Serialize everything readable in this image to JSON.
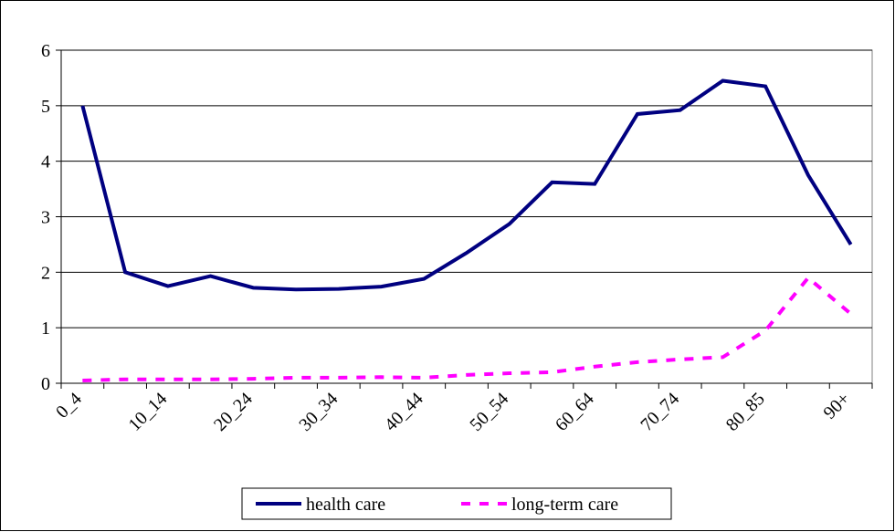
{
  "chart_data": {
    "type": "line",
    "categories": [
      "0_4",
      null,
      "10_14",
      null,
      "20_24",
      null,
      "30_34",
      null,
      "40_44",
      null,
      "50_54",
      null,
      "60_64",
      null,
      "70_74",
      null,
      "80_85",
      null,
      "90+"
    ],
    "series": [
      {
        "name": "health care",
        "color": "#000080",
        "dash": "solid",
        "values": [
          5.0,
          2.0,
          1.75,
          1.93,
          1.72,
          1.69,
          1.7,
          1.74,
          1.88,
          2.35,
          2.87,
          3.62,
          3.59,
          4.85,
          4.92,
          5.45,
          5.35,
          3.75,
          2.5
        ]
      },
      {
        "name": "long-term care",
        "color": "#ff00ff",
        "dash": "dashed",
        "values": [
          0.05,
          0.07,
          0.07,
          0.07,
          0.08,
          0.1,
          0.1,
          0.11,
          0.1,
          0.15,
          0.18,
          0.2,
          0.3,
          0.38,
          0.43,
          0.47,
          0.95,
          1.9,
          1.25
        ]
      }
    ],
    "ylim": [
      0,
      6
    ],
    "yticks": [
      0,
      1,
      2,
      3,
      4,
      5,
      6
    ],
    "grid": true,
    "legend": "bottom"
  }
}
